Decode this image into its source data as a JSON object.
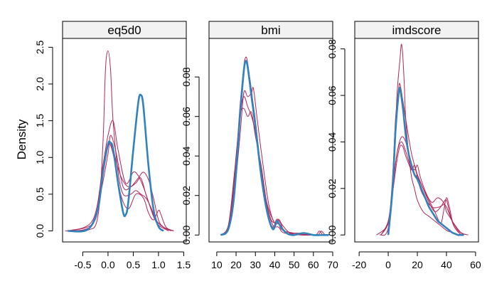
{
  "chart_data": {
    "type": "line",
    "ylabel": "Density",
    "observed_color": "#3182bd",
    "imputed_color": "#b2275a",
    "panels": [
      {
        "title": "eq5d0",
        "xlim": [
          -0.9,
          1.55
        ],
        "ylim": [
          -0.15,
          2.62
        ],
        "xticks": [
          -0.5,
          0.0,
          0.5,
          1.0,
          1.5
        ],
        "xtick_labels": [
          "-0.5",
          "0.0",
          "0.5",
          "1.0",
          "1.5"
        ],
        "yticks": [
          0.0,
          0.5,
          1.0,
          1.5,
          2.0,
          2.5
        ],
        "ytick_labels": [
          "0.0",
          "0.5",
          "1.0",
          "1.5",
          "2.0",
          "2.5"
        ],
        "observed": {
          "x": [
            -0.8,
            -0.4,
            -0.2,
            -0.1,
            0.0,
            0.05,
            0.1,
            0.2,
            0.3,
            0.35,
            0.4,
            0.5,
            0.6,
            0.65,
            0.7,
            0.8,
            0.9,
            1.0,
            1.1
          ],
          "y": [
            0.0,
            0.02,
            0.3,
            0.8,
            1.18,
            1.2,
            1.12,
            0.65,
            0.25,
            0.22,
            0.38,
            1.1,
            1.75,
            1.85,
            1.7,
            0.9,
            0.3,
            0.06,
            0.0
          ]
        },
        "imputed": [
          {
            "x": [
              -0.85,
              -0.4,
              -0.2,
              -0.1,
              -0.05,
              0.0,
              0.05,
              0.1,
              0.2,
              0.3,
              0.45,
              0.55,
              0.65,
              0.75,
              0.85,
              0.95,
              1.1,
              1.3
            ],
            "y": [
              0.0,
              0.01,
              0.2,
              1.2,
              2.2,
              2.45,
              2.2,
              1.5,
              0.8,
              0.5,
              0.5,
              0.55,
              0.5,
              0.45,
              0.32,
              0.15,
              0.05,
              0.0
            ]
          },
          {
            "x": [
              -0.8,
              -0.3,
              -0.15,
              0.0,
              0.05,
              0.15,
              0.3,
              0.45,
              0.6,
              0.7,
              0.8,
              0.9,
              1.0,
              1.1,
              1.25
            ],
            "y": [
              0.0,
              0.1,
              0.5,
              1.05,
              1.3,
              1.1,
              0.6,
              0.6,
              0.72,
              0.8,
              0.7,
              0.45,
              0.15,
              0.05,
              0.0
            ]
          },
          {
            "x": [
              -0.8,
              -0.3,
              -0.1,
              0.0,
              0.1,
              0.2,
              0.35,
              0.5,
              0.6,
              0.7,
              0.8,
              0.9,
              1.0,
              1.2
            ],
            "y": [
              0.0,
              0.15,
              0.9,
              1.3,
              1.5,
              1.1,
              0.65,
              0.8,
              0.75,
              0.6,
              0.4,
              0.2,
              0.08,
              0.0
            ]
          },
          {
            "x": [
              -0.8,
              -0.3,
              -0.1,
              0.0,
              0.1,
              0.25,
              0.4,
              0.55,
              0.65,
              0.75,
              0.85,
              0.95,
              1.1,
              1.3
            ],
            "y": [
              0.0,
              0.1,
              0.8,
              1.2,
              1.1,
              0.75,
              0.6,
              0.65,
              0.72,
              0.5,
              0.3,
              0.15,
              0.05,
              0.0
            ]
          },
          {
            "x": [
              -0.8,
              -0.3,
              -0.1,
              0.0,
              0.1,
              0.25,
              0.4,
              0.55,
              0.7,
              0.8,
              0.9,
              1.0,
              1.05,
              1.15,
              1.3
            ],
            "y": [
              0.0,
              0.1,
              0.85,
              1.18,
              1.05,
              0.5,
              0.3,
              0.5,
              0.45,
              0.25,
              0.15,
              0.28,
              0.22,
              0.05,
              0.0
            ]
          }
        ]
      },
      {
        "title": "bmi",
        "xlim": [
          6,
          70
        ],
        "ylim": [
          -0.0035,
          0.0995
        ],
        "xticks": [
          10,
          20,
          30,
          40,
          50,
          60,
          70
        ],
        "xtick_labels": [
          "10",
          "20",
          "30",
          "40",
          "50",
          "60",
          "70"
        ],
        "yticks": [
          0.0,
          0.02,
          0.04,
          0.06,
          0.08
        ],
        "ytick_labels": [
          "0.00",
          "0.02",
          "0.04",
          "0.06",
          "0.08"
        ],
        "observed": {
          "x": [
            12,
            16,
            19,
            22,
            24,
            25,
            26,
            28,
            30,
            33,
            36,
            39,
            41,
            42,
            44,
            47,
            50,
            55,
            60,
            65,
            68
          ],
          "y": [
            0.0,
            0.003,
            0.02,
            0.06,
            0.083,
            0.088,
            0.085,
            0.07,
            0.055,
            0.03,
            0.012,
            0.003,
            0.007,
            0.006,
            0.003,
            0.0005,
            0.0,
            0.001,
            0.0,
            0.0,
            0.0
          ]
        },
        "imputed": [
          {
            "x": [
              12,
              16,
              19,
              22,
              24,
              25,
              26,
              28,
              30,
              33,
              36,
              39,
              41,
              43,
              46,
              55,
              65,
              68
            ],
            "y": [
              0.0,
              0.004,
              0.025,
              0.065,
              0.085,
              0.09,
              0.087,
              0.072,
              0.058,
              0.032,
              0.012,
              0.004,
              0.008,
              0.006,
              0.001,
              0.0,
              0.0,
              0.0
            ]
          },
          {
            "x": [
              12,
              16,
              19,
              22,
              24,
              26,
              28,
              30,
              33,
              36,
              39,
              42,
              45,
              55,
              62,
              64,
              66
            ],
            "y": [
              0.0,
              0.005,
              0.03,
              0.06,
              0.064,
              0.06,
              0.062,
              0.05,
              0.035,
              0.015,
              0.005,
              0.004,
              0.001,
              0.001,
              0.0,
              0.002,
              0.0
            ]
          },
          {
            "x": [
              12,
              16,
              19,
              22,
              24,
              26,
              28,
              29,
              31,
              34,
              37,
              40,
              42,
              44,
              48,
              55,
              68
            ],
            "y": [
              0.0,
              0.004,
              0.02,
              0.05,
              0.072,
              0.07,
              0.072,
              0.074,
              0.058,
              0.035,
              0.015,
              0.006,
              0.008,
              0.005,
              0.001,
              0.0,
              0.0
            ]
          },
          {
            "x": [
              12,
              16,
              19,
              22,
              24,
              25,
              27,
              29,
              32,
              35,
              38,
              41,
              43,
              46,
              55,
              68
            ],
            "y": [
              0.0,
              0.003,
              0.018,
              0.06,
              0.085,
              0.088,
              0.08,
              0.065,
              0.04,
              0.02,
              0.008,
              0.006,
              0.005,
              0.001,
              0.0,
              0.0
            ]
          },
          {
            "x": [
              12,
              16,
              19,
              22,
              24,
              26,
              28,
              30,
              33,
              36,
              40,
              42,
              45,
              60,
              63,
              65,
              68
            ],
            "y": [
              0.0,
              0.004,
              0.028,
              0.06,
              0.07,
              0.065,
              0.06,
              0.052,
              0.034,
              0.016,
              0.006,
              0.006,
              0.002,
              0.0,
              0.002,
              0.0,
              0.0
            ]
          }
        ]
      },
      {
        "title": "imdscore",
        "xlim": [
          -23,
          62
        ],
        "ylim": [
          -0.003,
          0.0845
        ],
        "xticks": [
          -20,
          0,
          20,
          40,
          60
        ],
        "xtick_labels": [
          "-20",
          "0",
          "20",
          "40",
          "60"
        ],
        "yticks": [
          0.0,
          0.02,
          0.04,
          0.06,
          0.08
        ],
        "ytick_labels": [
          "0.00",
          "0.02",
          "0.04",
          "0.06",
          "0.08"
        ],
        "observed": {
          "x": [
            0,
            3,
            5,
            7,
            8,
            10,
            12,
            14,
            16,
            18,
            20,
            22,
            24,
            26,
            28,
            30,
            32,
            34,
            36,
            38,
            40,
            42,
            44,
            46,
            48,
            50,
            52
          ],
          "y": [
            0.0,
            0.02,
            0.045,
            0.06,
            0.063,
            0.055,
            0.043,
            0.035,
            0.03,
            0.026,
            0.024,
            0.021,
            0.018,
            0.015,
            0.012,
            0.01,
            0.008,
            0.006,
            0.005,
            0.004,
            0.003,
            0.002,
            0.001,
            0.0005,
            0.0,
            0.0,
            0.0
          ]
        },
        "imputed": [
          {
            "x": [
              0,
              3,
              5,
              7,
              8,
              10,
              12,
              14,
              16,
              18,
              20,
              22,
              25,
              30,
              35,
              38,
              40,
              44,
              48,
              52
            ],
            "y": [
              0.0,
              0.025,
              0.05,
              0.062,
              0.065,
              0.058,
              0.05,
              0.042,
              0.035,
              0.03,
              0.025,
              0.02,
              0.016,
              0.012,
              0.012,
              0.013,
              0.012,
              0.006,
              0.002,
              0.0
            ]
          },
          {
            "x": [
              -6,
              0,
              4,
              6,
              8,
              9,
              10,
              11,
              12,
              14,
              16,
              18,
              20,
              24,
              28,
              32,
              36,
              40,
              44,
              48
            ],
            "y": [
              0.0,
              0.003,
              0.03,
              0.06,
              0.075,
              0.082,
              0.077,
              0.065,
              0.05,
              0.035,
              0.025,
              0.02,
              0.015,
              0.01,
              0.008,
              0.006,
              0.004,
              0.002,
              0.001,
              0.0
            ]
          },
          {
            "x": [
              -8,
              0,
              3,
              6,
              9,
              12,
              15,
              18,
              20,
              22,
              26,
              30,
              34,
              38,
              40,
              42,
              45,
              50,
              55
            ],
            "y": [
              0.0,
              0.005,
              0.02,
              0.035,
              0.042,
              0.04,
              0.032,
              0.028,
              0.03,
              0.025,
              0.018,
              0.014,
              0.016,
              0.014,
              0.01,
              0.008,
              0.005,
              0.001,
              0.0
            ]
          },
          {
            "x": [
              -5,
              0,
              3,
              6,
              8,
              10,
              12,
              16,
              18,
              20,
              24,
              28,
              32,
              36,
              38,
              40,
              42,
              45,
              50
            ],
            "y": [
              0.0,
              0.005,
              0.018,
              0.032,
              0.038,
              0.038,
              0.034,
              0.028,
              0.03,
              0.026,
              0.02,
              0.014,
              0.01,
              0.012,
              0.014,
              0.015,
              0.01,
              0.004,
              0.0
            ]
          },
          {
            "x": [
              -5,
              0,
              3,
              6,
              9,
              12,
              15,
              18,
              20,
              24,
              28,
              32,
              36,
              38,
              40,
              42,
              45,
              50
            ],
            "y": [
              0.0,
              0.006,
              0.02,
              0.035,
              0.04,
              0.036,
              0.03,
              0.026,
              0.025,
              0.02,
              0.015,
              0.01,
              0.005,
              0.01,
              0.016,
              0.012,
              0.004,
              0.0
            ]
          }
        ]
      }
    ]
  }
}
